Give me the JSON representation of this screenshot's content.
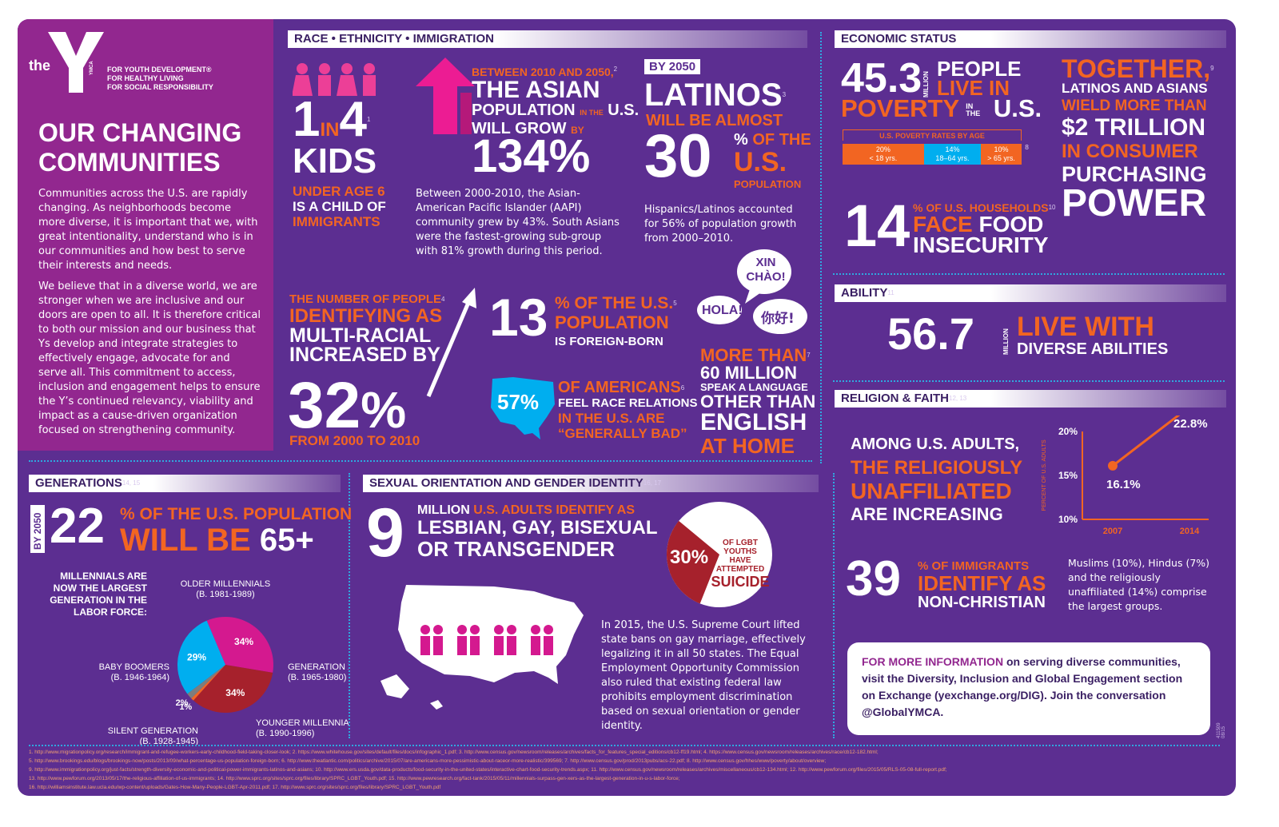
{
  "brand": {
    "logo_text": "the",
    "logo_y": "Y",
    "logo_small": "YMCA",
    "tagline": [
      "FOR YOUTH DEVELOPMENT®",
      "FOR HEALTHY LIVING",
      "FOR SOCIAL RESPONSIBILITY"
    ],
    "colors": {
      "purple": "#5c2e91",
      "magenta": "#92278f",
      "orange": "#f26522",
      "blue": "#00aeef",
      "red": "#a6212c"
    }
  },
  "intro": {
    "title_line1": "OUR CHANGING",
    "title_line2": "COMMUNITIES",
    "para1": "Communities across the U.S. are rapidly changing. As neighborhoods become more diverse, it is important that we, with great intentionality, understand who is in our communities and how best to serve their interests and needs.",
    "para2": "We believe that in a diverse world, we are stronger when we are inclusive and our doors are open to all. It is therefore critical to both our mission and our business that Ys develop and integrate strategies to effectively engage, advocate for and serve all. This commitment to access, inclusion and engagement helps to ensure the Y’s continued relevancy, viability and impact as a cause-driven organization focused on strengthening community."
  },
  "race": {
    "header": "RACE • ETHNICITY • IMMIGRATION",
    "kids": {
      "num1": "1",
      "in": "IN",
      "num2": "4",
      "word": "KIDS",
      "sup": "1",
      "l1": "UNDER AGE 6",
      "l2": "IS A CHILD OF",
      "l3": "IMMIGRANTS"
    },
    "asian": {
      "l1": "BETWEEN 2010 AND 2050,",
      "sup": "2",
      "l2": "THE ASIAN",
      "l3a": "POPULATION",
      "l3b": "IN THE",
      "l3c": "U.S.",
      "l4a": "WILL GROW",
      "l4b": "BY",
      "pct": "134%",
      "body": "Between 2000-2010, the Asian-American Pacific Islander (AAPI) community grew by 43%. South Asians were the fastest-growing sub-group with 81% growth during this period."
    },
    "latinos": {
      "badge": "BY 2050",
      "l1": "LATINOS",
      "sup": "3",
      "l2": "WILL BE ALMOST",
      "num": "30",
      "pct": "%",
      "of_the": "OF THE",
      "us": "U.S.",
      "pop": "POPULATION",
      "body": "Hispanics/Latinos accounted for 56% of population growth from 2000–2010."
    },
    "multi": {
      "l1": "THE NUMBER OF PEOPLE",
      "sup": "4",
      "l2": "IDENTIFYING AS",
      "l3": "MULTI-RACIAL",
      "l4": "INCREASED BY",
      "num": "32",
      "pct": "%",
      "l5": "FROM 2000 TO 2010"
    },
    "foreign": {
      "num": "13",
      "l1": "% OF THE U.S.",
      "sup": "5",
      "l2": "POPULATION",
      "l3": "IS FOREIGN-BORN"
    },
    "relations": {
      "pct": "57%",
      "l1": "OF AMERICANS",
      "sup": "6",
      "l2": "FEEL RACE RELATIONS",
      "l3": "IN THE U.S. ARE",
      "l4": "“GENERALLY BAD”"
    },
    "language": {
      "b1": "XIN CHÀO!",
      "b2": "HOLA!",
      "b3": "你好!",
      "l1": "MORE THAN",
      "sup": "7",
      "l2": "60 MILLION",
      "l3": "SPEAK A LANGUAGE",
      "l4": "OTHER THAN",
      "l5": "ENGLISH",
      "l6": "AT HOME"
    }
  },
  "economic": {
    "header": "ECONOMIC STATUS",
    "poverty": {
      "num": "45.3",
      "million": "MILLION",
      "l1": "PEOPLE",
      "l2": "LIVE IN",
      "l3": "POVERTY",
      "inthe": "IN THE",
      "us": "U.S.",
      "rates_label": "U.S. POVERTY RATES BY AGE",
      "sup": "8"
    },
    "poverty_rates": [
      {
        "pct": "20%",
        "age": "< 18 yrs.",
        "value": 20,
        "color": "#f26522"
      },
      {
        "pct": "14%",
        "age": "18–64 yrs.",
        "value": 14,
        "color": "#00aeef"
      },
      {
        "pct": "10%",
        "age": "> 65 yrs.",
        "value": 10,
        "color": "#f26522"
      }
    ],
    "together": {
      "l1": "TOGETHER,",
      "sup": "9",
      "l2": "LATINOS AND ASIANS",
      "l3": "WIELD MORE THAN",
      "l4": "$2 TRILLION",
      "l5": "IN CONSUMER",
      "l6": "PURCHASING",
      "l7": "POWER"
    },
    "food": {
      "num": "14",
      "l1": "% OF U.S. HOUSEHOLDS",
      "sup": "10",
      "l2a": "FACE",
      "l2b": "FOOD",
      "l3": "INSECURITY"
    }
  },
  "ability": {
    "header": "ABILITY",
    "sup": "11",
    "num": "56.7",
    "million": "MILLION",
    "l1": "LIVE WITH",
    "l2": "DIVERSE ABILITIES"
  },
  "religion": {
    "header": "RELIGION & FAITH",
    "sup": "12, 13",
    "l1": "AMONG U.S. ADULTS,",
    "l2": "THE RELIGIOUSLY",
    "l3": "UNAFFILIATED",
    "l4": "ARE INCREASING",
    "immig_num": "39",
    "immig_l1": "% OF IMMIGRANTS",
    "immig_l2": "IDENTIFY AS",
    "immig_l3": "NON-CHRISTIAN",
    "groups_text": "Muslims (10%), Hindus (7%) and the religiously unaffiliated (14%) comprise the largest groups."
  },
  "chart_data": [
    {
      "type": "line",
      "title": "",
      "xlabel": "",
      "ylabel": "PERCENT OF U.S. ADULTS",
      "x": [
        2007,
        2014
      ],
      "categories": [
        "2007",
        "2014"
      ],
      "values": [
        16.1,
        22.8
      ],
      "data_labels": [
        "16.1%",
        "22.8%"
      ],
      "yticks": [
        "20%",
        "15%",
        "10%"
      ],
      "ylim": [
        10,
        20
      ]
    },
    {
      "type": "pie",
      "title": "",
      "intro": "MILLENNIALS ARE NOW THE LARGEST GENERATION IN THE LABOR FORCE:",
      "slices": [
        {
          "name": "OLDER MILLENNIALS",
          "years": "(B. 1981-1989)",
          "value": 34,
          "label": "34%",
          "color": "#d4198f"
        },
        {
          "name": "GENERATION X",
          "years": "(B. 1965-1980)",
          "value": 34,
          "label": "34%",
          "color": "#a6212c"
        },
        {
          "name": "YOUNGER MILLENNIALS",
          "years": "(B. 1990-1996)",
          "value": 1,
          "label": "1%",
          "color": "#f26522"
        },
        {
          "name": "SILENT GENERATION",
          "years": "(B. 1928-1945)",
          "value": 2,
          "label": "2%",
          "color": "#7d7d7d"
        },
        {
          "name": "BABY BOOMERS",
          "years": "(B. 1946-1964)",
          "value": 29,
          "label": "29%",
          "color": "#00aeef"
        }
      ]
    }
  ],
  "generations": {
    "header": "GENERATIONS",
    "sup": "14, 15",
    "by2050": "BY 2050",
    "num": "22",
    "l1": "% OF THE U.S. POPULATION",
    "l2a": "WILL BE",
    "l2b": "65+"
  },
  "sexual": {
    "header": "SEXUAL ORIENTATION AND GENDER IDENTITY",
    "sup": "16, 17",
    "num": "9",
    "l1a": "MILLION",
    "l1b": "U.S. ADULTS IDENTIFY AS",
    "l2": "LESBIAN, GAY, BISEXUAL",
    "l3": "OR TRANSGENDER",
    "pct": "30%",
    "p1": "OF LGBT",
    "p2": "YOUTHS",
    "p3": "HAVE",
    "p4": "ATTEMPTED",
    "p5": "SUICIDE",
    "pie_value": 30,
    "body": "In 2015, the U.S. Supreme Court lifted state bans on gay marriage, effectively legalizing it in all 50 states. The Equal Employment Opportunity Commission also ruled that existing federal law prohibits employment discrimination based on sexual orientation or gender identity."
  },
  "more_info": {
    "lead": "FOR MORE INFORMATION",
    "text": " on serving diverse communities, visit the Diversity, Inclusion and Global Engagement section on Exchange (yexchange.org/DIG). Join the conversation @GlobalYMCA."
  },
  "code": "411509 08/15",
  "sources": [
    "1. http://www.migrationpolicy.org/research/immigrant-and-refugee-workers-early-childhood-field-taking-closer-look; 2. https://www.whitehouse.gov/sites/default/files/docs/infographic_1.pdf; 3. http://www.census.gov/newsroom/releases/archives/facts_for_features_special_editions/cb12-ff19.html; 4. https://www.census.gov/newsroom/releases/archives/race/cb12-182.html;",
    "5. http://www.brookings.edu/blogs/brookings-now/posts/2013/09/what-percentage-us-population-foreign-born; 6. http://www.theatlantic.com/politics/archive/2015/07/are-americans-more-pessimistic-about-raceor-more-realistic/399569; 7. http://www.census.gov/prod/2013pubs/acs-22.pdf; 8. http://www.census.gov/hhes/www/poverty/about/overview;",
    "9. http://www.immigrationpolicy.org/just-facts/strength-diversity-economic-and-political-power-immigrants-latinos-and-asians; 10. http://www.ers.usda.gov/data-products/food-security-in-the-united-states/interactive-chart-food-security-trends.aspx; 11. http://www.census.gov/newsroom/releases/archives/miscellaneous/cb12-134.html; 12. http://www.pewforum.org/files/2015/05/RLS-05-08-full-report.pdf;",
    "13. http://www.pewforum.org/2013/05/17/the-religious-affiliation-of-us-immigrants; 14. http://www.sprc.org/sites/sprc.org/files/library/SPRC_LGBT_Youth.pdf; 15. http://www.pewresearch.org/fact-tank/2015/05/11/millennials-surpass-gen-xers-as-the-largest-generation-in-u-s-labor-force;",
    "16. http://williamsinstitute.law.ucla.edu/wp-content/uploads/Gates-How-Many-People-LGBT-Apr-2011.pdf; 17. http://www.sprc.org/sites/sprc.org/files/library/SPRC_LGBT_Youth.pdf"
  ]
}
